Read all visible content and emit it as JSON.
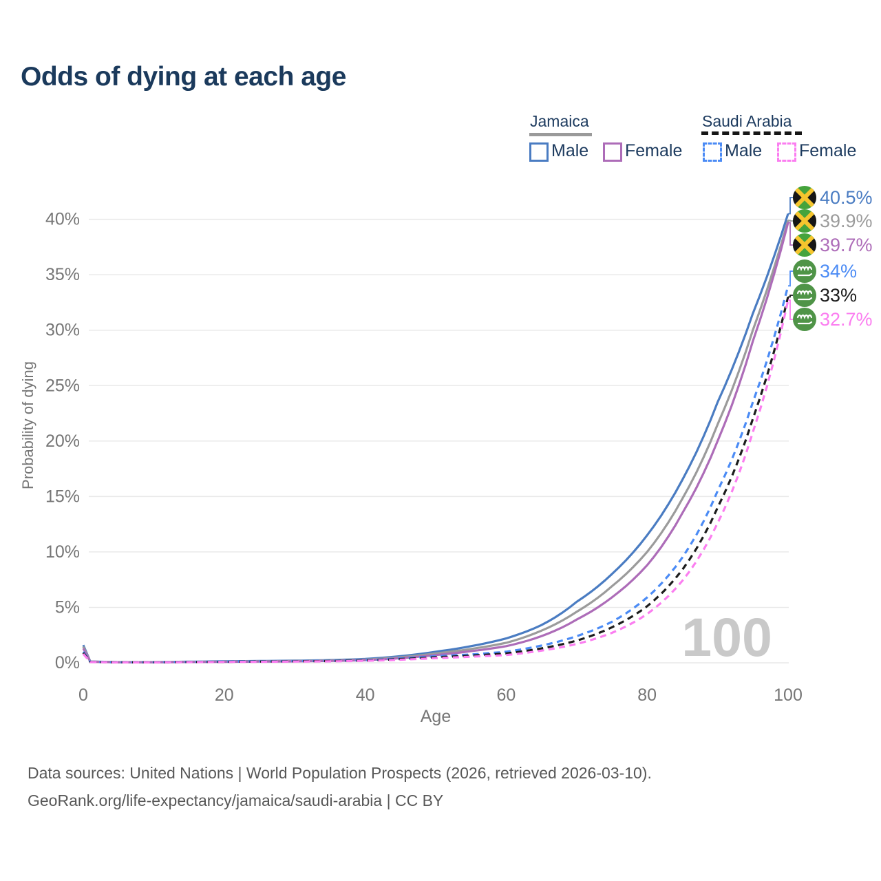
{
  "title": "Odds of dying at each age",
  "legend": {
    "jamaica": {
      "label": "Jamaica",
      "male_label": "Male",
      "female_label": "Female"
    },
    "saudi_arabia": {
      "label": "Saudi Arabia",
      "male_label": "Male",
      "female_label": "Female"
    }
  },
  "colors": {
    "title_text": "#1b3a5c",
    "axis_text": "#767676",
    "gridline": "#e9e9e9",
    "watermark": "#c9c9c9",
    "footer_text": "#585858",
    "jamaica_male": "#4a7cc2",
    "jamaica_both": "#9b9b9b",
    "jamaica_female": "#ad6cb8",
    "saudi_male": "#4b8bf5",
    "saudi_both": "#1c1c1c",
    "saudi_female": "#fb7ef0",
    "jamaica_flag_green": "#45a33c",
    "jamaica_flag_gold": "#f5c52e",
    "jamaica_flag_black": "#161616",
    "saudi_flag_green": "#4f9447"
  },
  "chart_data": {
    "type": "line",
    "title": "Odds of dying at each age",
    "xlabel": "Age",
    "ylabel": "Probability of dying",
    "xlim": [
      0,
      100
    ],
    "ylim_pct": [
      0,
      42
    ],
    "x_ticks": [
      0,
      20,
      40,
      60,
      80,
      100
    ],
    "y_ticks_pct": [
      0,
      5,
      10,
      15,
      20,
      25,
      30,
      35,
      40
    ],
    "grid": "horizontal",
    "legend_position": "top-right",
    "watermark": "100",
    "series": [
      {
        "id": "jamaica-male",
        "country": "Jamaica",
        "sex": "Male",
        "style": "solid",
        "color": "#4a7cc2",
        "flag": "jamaica",
        "end_label": "40.5%",
        "end_value_pct": 40.5,
        "points_age_pct": [
          [
            0,
            1.6
          ],
          [
            1,
            0.12
          ],
          [
            5,
            0.06
          ],
          [
            10,
            0.06
          ],
          [
            15,
            0.1
          ],
          [
            20,
            0.14
          ],
          [
            25,
            0.16
          ],
          [
            30,
            0.19
          ],
          [
            35,
            0.24
          ],
          [
            40,
            0.35
          ],
          [
            45,
            0.6
          ],
          [
            50,
            1.0
          ],
          [
            55,
            1.5
          ],
          [
            60,
            2.2
          ],
          [
            65,
            3.4
          ],
          [
            70,
            5.5
          ],
          [
            75,
            8.0
          ],
          [
            80,
            11.5
          ],
          [
            85,
            16.5
          ],
          [
            90,
            23.5
          ],
          [
            95,
            31.5
          ],
          [
            100,
            40.5
          ]
        ]
      },
      {
        "id": "jamaica-both",
        "country": "Jamaica",
        "sex": "Both",
        "style": "solid",
        "color": "#9b9b9b",
        "flag": "jamaica",
        "end_label": "39.9%",
        "end_value_pct": 39.9,
        "points_age_pct": [
          [
            0,
            1.45
          ],
          [
            1,
            0.11
          ],
          [
            5,
            0.05
          ],
          [
            10,
            0.05
          ],
          [
            15,
            0.08
          ],
          [
            20,
            0.11
          ],
          [
            25,
            0.13
          ],
          [
            30,
            0.16
          ],
          [
            35,
            0.2
          ],
          [
            40,
            0.29
          ],
          [
            45,
            0.5
          ],
          [
            50,
            0.85
          ],
          [
            55,
            1.25
          ],
          [
            60,
            1.8
          ],
          [
            65,
            2.9
          ],
          [
            70,
            4.6
          ],
          [
            75,
            6.9
          ],
          [
            80,
            10.0
          ],
          [
            85,
            14.8
          ],
          [
            90,
            21.5
          ],
          [
            95,
            30.0
          ],
          [
            100,
            39.9
          ]
        ]
      },
      {
        "id": "jamaica-female",
        "country": "Jamaica",
        "sex": "Female",
        "style": "solid",
        "color": "#ad6cb8",
        "flag": "jamaica",
        "end_label": "39.7%",
        "end_value_pct": 39.7,
        "points_age_pct": [
          [
            0,
            1.3
          ],
          [
            1,
            0.1
          ],
          [
            5,
            0.05
          ],
          [
            10,
            0.05
          ],
          [
            15,
            0.07
          ],
          [
            20,
            0.09
          ],
          [
            25,
            0.11
          ],
          [
            30,
            0.13
          ],
          [
            35,
            0.17
          ],
          [
            40,
            0.24
          ],
          [
            45,
            0.42
          ],
          [
            50,
            0.7
          ],
          [
            55,
            1.05
          ],
          [
            60,
            1.5
          ],
          [
            65,
            2.4
          ],
          [
            70,
            3.9
          ],
          [
            75,
            5.9
          ],
          [
            80,
            8.8
          ],
          [
            85,
            13.5
          ],
          [
            90,
            20.0
          ],
          [
            95,
            29.0
          ],
          [
            100,
            39.7
          ]
        ]
      },
      {
        "id": "saudi-male",
        "country": "Saudi Arabia",
        "sex": "Male",
        "style": "dashed",
        "color": "#4b8bf5",
        "flag": "saudi-arabia",
        "end_label": "34%",
        "end_value_pct": 34.0,
        "points_age_pct": [
          [
            0,
            1.0
          ],
          [
            1,
            0.09
          ],
          [
            5,
            0.05
          ],
          [
            10,
            0.05
          ],
          [
            15,
            0.08
          ],
          [
            20,
            0.11
          ],
          [
            25,
            0.13
          ],
          [
            30,
            0.15
          ],
          [
            35,
            0.18
          ],
          [
            40,
            0.24
          ],
          [
            45,
            0.4
          ],
          [
            50,
            0.6
          ],
          [
            55,
            0.75
          ],
          [
            60,
            1.0
          ],
          [
            65,
            1.55
          ],
          [
            70,
            2.4
          ],
          [
            75,
            3.7
          ],
          [
            80,
            5.9
          ],
          [
            85,
            9.5
          ],
          [
            90,
            15.5
          ],
          [
            95,
            23.5
          ],
          [
            100,
            34.0
          ]
        ]
      },
      {
        "id": "saudi-both",
        "country": "Saudi Arabia",
        "sex": "Both",
        "style": "dashed",
        "color": "#1c1c1c",
        "flag": "saudi-arabia",
        "end_label": "33%",
        "end_value_pct": 33.0,
        "points_age_pct": [
          [
            0,
            0.9
          ],
          [
            1,
            0.08
          ],
          [
            5,
            0.05
          ],
          [
            10,
            0.05
          ],
          [
            15,
            0.07
          ],
          [
            20,
            0.09
          ],
          [
            25,
            0.11
          ],
          [
            30,
            0.13
          ],
          [
            35,
            0.16
          ],
          [
            40,
            0.21
          ],
          [
            45,
            0.34
          ],
          [
            50,
            0.5
          ],
          [
            55,
            0.65
          ],
          [
            60,
            0.85
          ],
          [
            65,
            1.3
          ],
          [
            70,
            2.0
          ],
          [
            75,
            3.2
          ],
          [
            80,
            5.1
          ],
          [
            85,
            8.4
          ],
          [
            90,
            14.0
          ],
          [
            95,
            22.0
          ],
          [
            100,
            33.0
          ]
        ]
      },
      {
        "id": "saudi-female",
        "country": "Saudi Arabia",
        "sex": "Female",
        "style": "dashed",
        "color": "#fb7ef0",
        "flag": "saudi-arabia",
        "end_label": "32.7%",
        "end_value_pct": 32.7,
        "points_age_pct": [
          [
            0,
            0.8
          ],
          [
            1,
            0.07
          ],
          [
            5,
            0.04
          ],
          [
            10,
            0.04
          ],
          [
            15,
            0.06
          ],
          [
            20,
            0.08
          ],
          [
            25,
            0.09
          ],
          [
            30,
            0.11
          ],
          [
            35,
            0.13
          ],
          [
            40,
            0.18
          ],
          [
            45,
            0.28
          ],
          [
            50,
            0.42
          ],
          [
            55,
            0.55
          ],
          [
            60,
            0.7
          ],
          [
            65,
            1.1
          ],
          [
            70,
            1.7
          ],
          [
            75,
            2.7
          ],
          [
            80,
            4.4
          ],
          [
            85,
            7.4
          ],
          [
            90,
            12.6
          ],
          [
            95,
            20.8
          ],
          [
            100,
            32.7
          ]
        ]
      }
    ]
  },
  "footer": {
    "line1": "Data sources: United Nations | World Population Prospects (2026, retrieved 2026-03-10).",
    "line2": "GeoRank.org/life-expectancy/jamaica/saudi-arabia | CC BY"
  }
}
